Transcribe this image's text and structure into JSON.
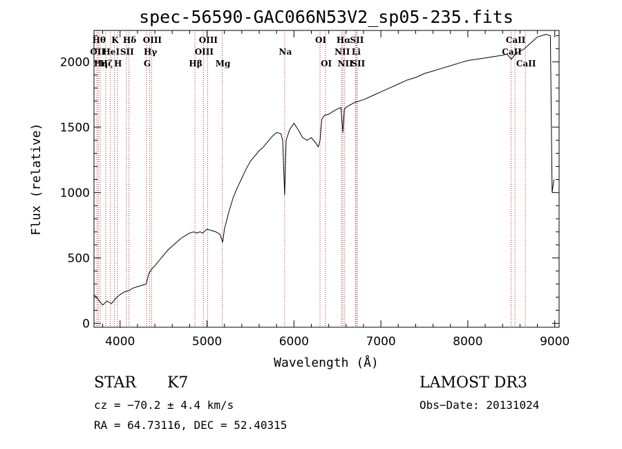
{
  "chart_data": {
    "type": "line",
    "title": "spec-56590-GAC066N53V2_sp05-235.fits",
    "xlabel": "Wavelength (Å)",
    "ylabel": "Flux (relative)",
    "xlim": [
      3700,
      9050
    ],
    "ylim": [
      -30,
      2240
    ],
    "xticks": [
      4000,
      5000,
      6000,
      7000,
      8000,
      9000
    ],
    "yticks": [
      0,
      500,
      1000,
      1500,
      2000
    ],
    "series": [
      {
        "name": "spectrum",
        "points": [
          [
            3700,
            220
          ],
          [
            3750,
            180
          ],
          [
            3800,
            140
          ],
          [
            3850,
            170
          ],
          [
            3900,
            150
          ],
          [
            3950,
            190
          ],
          [
            4000,
            220
          ],
          [
            4050,
            240
          ],
          [
            4100,
            250
          ],
          [
            4150,
            270
          ],
          [
            4200,
            280
          ],
          [
            4250,
            290
          ],
          [
            4300,
            300
          ],
          [
            4330,
            380
          ],
          [
            4370,
            420
          ],
          [
            4400,
            440
          ],
          [
            4450,
            480
          ],
          [
            4500,
            520
          ],
          [
            4550,
            560
          ],
          [
            4600,
            590
          ],
          [
            4650,
            620
          ],
          [
            4700,
            650
          ],
          [
            4750,
            670
          ],
          [
            4800,
            690
          ],
          [
            4850,
            700
          ],
          [
            4880,
            690
          ],
          [
            4920,
            700
          ],
          [
            4950,
            690
          ],
          [
            5000,
            720
          ],
          [
            5050,
            710
          ],
          [
            5100,
            700
          ],
          [
            5150,
            680
          ],
          [
            5180,
            620
          ],
          [
            5200,
            720
          ],
          [
            5250,
            850
          ],
          [
            5300,
            960
          ],
          [
            5350,
            1040
          ],
          [
            5400,
            1110
          ],
          [
            5450,
            1180
          ],
          [
            5500,
            1240
          ],
          [
            5550,
            1280
          ],
          [
            5600,
            1320
          ],
          [
            5650,
            1350
          ],
          [
            5700,
            1390
          ],
          [
            5750,
            1430
          ],
          [
            5800,
            1460
          ],
          [
            5850,
            1450
          ],
          [
            5870,
            1400
          ],
          [
            5893,
            980
          ],
          [
            5910,
            1400
          ],
          [
            5950,
            1480
          ],
          [
            6000,
            1530
          ],
          [
            6050,
            1480
          ],
          [
            6100,
            1420
          ],
          [
            6150,
            1400
          ],
          [
            6200,
            1420
          ],
          [
            6250,
            1380
          ],
          [
            6280,
            1350
          ],
          [
            6300,
            1400
          ],
          [
            6320,
            1560
          ],
          [
            6350,
            1590
          ],
          [
            6400,
            1600
          ],
          [
            6450,
            1620
          ],
          [
            6500,
            1640
          ],
          [
            6540,
            1650
          ],
          [
            6563,
            1460
          ],
          [
            6580,
            1640
          ],
          [
            6620,
            1660
          ],
          [
            6700,
            1690
          ],
          [
            6800,
            1710
          ],
          [
            6900,
            1740
          ],
          [
            7000,
            1770
          ],
          [
            7100,
            1800
          ],
          [
            7200,
            1830
          ],
          [
            7300,
            1860
          ],
          [
            7400,
            1880
          ],
          [
            7500,
            1910
          ],
          [
            7600,
            1930
          ],
          [
            7700,
            1950
          ],
          [
            7800,
            1970
          ],
          [
            7900,
            1990
          ],
          [
            8000,
            2010
          ],
          [
            8100,
            2020
          ],
          [
            8200,
            2030
          ],
          [
            8300,
            2040
          ],
          [
            8400,
            2050
          ],
          [
            8450,
            2060
          ],
          [
            8500,
            2020
          ],
          [
            8550,
            2060
          ],
          [
            8600,
            2080
          ],
          [
            8650,
            2100
          ],
          [
            8700,
            2130
          ],
          [
            8750,
            2160
          ],
          [
            8800,
            2190
          ],
          [
            8850,
            2200
          ],
          [
            8900,
            2210
          ],
          [
            8950,
            2200
          ],
          [
            8970,
            1000
          ],
          [
            8990,
            1100
          ]
        ]
      }
    ],
    "lines": [
      {
        "wave": 3750,
        "label": "Hθ",
        "row": 0
      },
      {
        "wave": 3734,
        "label": "OII",
        "row": 1
      },
      {
        "wave": 3771,
        "label": "Hη",
        "row": 2
      },
      {
        "wave": 3835,
        "label": "Hζ",
        "row": 2
      },
      {
        "wave": 3889,
        "label": "HeI",
        "row": 1
      },
      {
        "wave": 3934,
        "label": "K",
        "row": 0
      },
      {
        "wave": 3968,
        "label": "H",
        "row": 2
      },
      {
        "wave": 4072,
        "label": "SII",
        "row": 1
      },
      {
        "wave": 4102,
        "label": "Hδ",
        "row": 0
      },
      {
        "wave": 4304,
        "label": "G",
        "row": 2
      },
      {
        "wave": 4341,
        "label": "Hγ",
        "row": 1
      },
      {
        "wave": 4363,
        "label": "OIII",
        "row": 0
      },
      {
        "wave": 4861,
        "label": "Hβ",
        "row": 2
      },
      {
        "wave": 4959,
        "label": "OIII",
        "row": 1
      },
      {
        "wave": 5007,
        "label": "OIII",
        "row": 0
      },
      {
        "wave": 5175,
        "label": "Mg",
        "row": 2
      },
      {
        "wave": 5893,
        "label": "Na",
        "row": 1
      },
      {
        "wave": 6300,
        "label": "OI",
        "row": 0
      },
      {
        "wave": 6364,
        "label": "OI",
        "row": 2
      },
      {
        "wave": 6548,
        "label": "NII",
        "row": 1
      },
      {
        "wave": 6563,
        "label": "Hα",
        "row": 0
      },
      {
        "wave": 6583,
        "label": "NII",
        "row": 2
      },
      {
        "wave": 6708,
        "label": "Li",
        "row": 1
      },
      {
        "wave": 6716,
        "label": "SII",
        "row": 0
      },
      {
        "wave": 6731,
        "label": "SII",
        "row": 2
      },
      {
        "wave": 8498,
        "label": "CaII",
        "row": 1
      },
      {
        "wave": 8542,
        "label": "CaII",
        "row": 0
      },
      {
        "wave": 8662,
        "label": "CaII",
        "row": 2
      }
    ]
  },
  "info": {
    "object_class": "STAR",
    "subclass": "K7",
    "survey": "LAMOST DR3",
    "redshift": "cz = −70.2 ± 4.4 km/s",
    "obs_date": "Obs−Date: 20131024",
    "coords": "RA =  64.73116, DEC =  52.40315"
  },
  "colors": {
    "line": "#000000",
    "marker": "#b22222",
    "text": "#000000"
  }
}
